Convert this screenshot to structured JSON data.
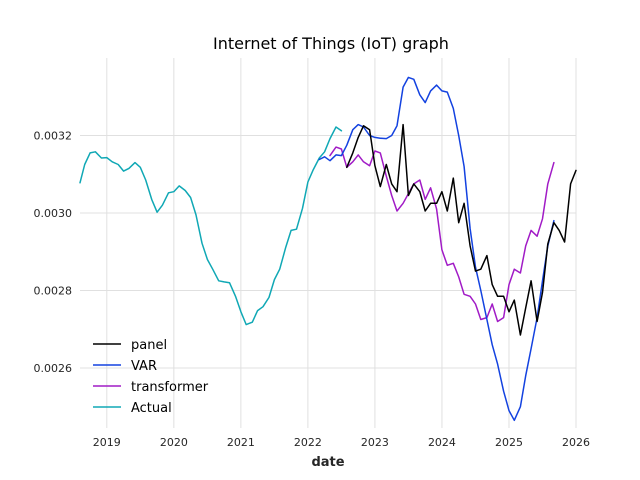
{
  "chart_data": {
    "type": "line",
    "title": "Internet of Things (IoT) graph",
    "xlabel": "date",
    "ylabel": "",
    "xlim": [
      2018.6,
      2026.0
    ],
    "ylim": [
      0.002445,
      0.0034
    ],
    "x_ticks": [
      2019,
      2020,
      2021,
      2022,
      2023,
      2024,
      2025,
      2026
    ],
    "x_tick_labels": [
      "2019",
      "2020",
      "2021",
      "2022",
      "2023",
      "2024",
      "2025",
      "2026"
    ],
    "y_ticks": [
      0.0026,
      0.0028,
      0.003,
      0.0032
    ],
    "y_tick_labels": [
      "0.0026",
      "0.0028",
      "0.0030",
      "0.0032"
    ],
    "grid": true,
    "legend_position": "lower-left",
    "series": [
      {
        "name": "panel",
        "color": "#000000",
        "x": [
          2022.58,
          2022.67,
          2022.75,
          2022.83,
          2022.92,
          2023.0,
          2023.08,
          2023.17,
          2023.25,
          2023.33,
          2023.42,
          2023.5,
          2023.58,
          2023.67,
          2023.75,
          2023.83,
          2023.92,
          2024.0,
          2024.08,
          2024.17,
          2024.25,
          2024.33,
          2024.42,
          2024.5,
          2024.58,
          2024.67,
          2024.75,
          2024.83,
          2024.92,
          2025.0,
          2025.08,
          2025.17,
          2025.25,
          2025.33,
          2025.42,
          2025.5,
          2025.58,
          2025.67,
          2025.75,
          2025.83,
          2025.92,
          2026.0
        ],
        "y": [
          0.003118,
          0.003155,
          0.003195,
          0.003225,
          0.003215,
          0.003122,
          0.003068,
          0.003125,
          0.003075,
          0.003055,
          0.003228,
          0.003045,
          0.003075,
          0.003055,
          0.003005,
          0.003025,
          0.003025,
          0.003055,
          0.003005,
          0.00309,
          0.002975,
          0.003025,
          0.002915,
          0.00285,
          0.002855,
          0.00289,
          0.002815,
          0.002785,
          0.002785,
          0.002745,
          0.002775,
          0.002685,
          0.002755,
          0.002825,
          0.00272,
          0.002795,
          0.00292,
          0.002975,
          0.002955,
          0.002925,
          0.003075,
          0.00311
        ]
      },
      {
        "name": "VAR",
        "color": "#1342e0",
        "x": [
          2022.17,
          2022.25,
          2022.33,
          2022.42,
          2022.5,
          2022.58,
          2022.67,
          2022.75,
          2022.83,
          2022.92,
          2023.0,
          2023.08,
          2023.17,
          2023.25,
          2023.33,
          2023.42,
          2023.5,
          2023.58,
          2023.67,
          2023.75,
          2023.83,
          2023.92,
          2024.0,
          2024.08,
          2024.17,
          2024.25,
          2024.33,
          2024.42,
          2024.5,
          2024.58,
          2024.67,
          2024.75,
          2024.83,
          2024.92,
          2025.0,
          2025.08,
          2025.17,
          2025.25,
          2025.33,
          2025.42,
          2025.5,
          2025.58,
          2025.67
        ],
        "y": [
          0.003138,
          0.003145,
          0.003135,
          0.00315,
          0.003148,
          0.003175,
          0.003215,
          0.003228,
          0.003222,
          0.0032,
          0.003195,
          0.003193,
          0.003192,
          0.0032,
          0.003225,
          0.003325,
          0.00335,
          0.003345,
          0.003305,
          0.003285,
          0.003315,
          0.00333,
          0.003315,
          0.003312,
          0.00327,
          0.0032,
          0.00312,
          0.00296,
          0.00286,
          0.0028,
          0.002725,
          0.00266,
          0.00261,
          0.00254,
          0.00249,
          0.002465,
          0.0025,
          0.00258,
          0.00265,
          0.00273,
          0.002825,
          0.002915,
          0.00298
        ]
      },
      {
        "name": "transformer",
        "color": "#a11bc6",
        "x": [
          2022.33,
          2022.42,
          2022.5,
          2022.58,
          2022.67,
          2022.75,
          2022.83,
          2022.92,
          2023.0,
          2023.08,
          2023.17,
          2023.25,
          2023.33,
          2023.42,
          2023.5,
          2023.58,
          2023.67,
          2023.75,
          2023.83,
          2023.92,
          2024.0,
          2024.08,
          2024.17,
          2024.25,
          2024.33,
          2024.42,
          2024.5,
          2024.58,
          2024.67,
          2024.75,
          2024.83,
          2024.92,
          2025.0,
          2025.08,
          2025.17,
          2025.25,
          2025.33,
          2025.42,
          2025.5,
          2025.58,
          2025.67
        ],
        "y": [
          0.003148,
          0.00317,
          0.003165,
          0.003118,
          0.003132,
          0.00315,
          0.003132,
          0.003122,
          0.00316,
          0.003155,
          0.003095,
          0.003045,
          0.003005,
          0.003025,
          0.00305,
          0.003075,
          0.003085,
          0.003035,
          0.003065,
          0.00301,
          0.002905,
          0.002865,
          0.00287,
          0.002835,
          0.00279,
          0.002785,
          0.002765,
          0.002725,
          0.00273,
          0.002765,
          0.00272,
          0.00273,
          0.002815,
          0.002855,
          0.002845,
          0.002915,
          0.002955,
          0.00294,
          0.002985,
          0.003075,
          0.00313
        ]
      },
      {
        "name": "Actual",
        "color": "#10a8b5",
        "x": [
          2018.6,
          2018.67,
          2018.75,
          2018.83,
          2018.92,
          2019.0,
          2019.08,
          2019.17,
          2019.25,
          2019.33,
          2019.42,
          2019.5,
          2019.58,
          2019.67,
          2019.75,
          2019.83,
          2019.92,
          2020.0,
          2020.08,
          2020.17,
          2020.25,
          2020.33,
          2020.42,
          2020.5,
          2020.58,
          2020.67,
          2020.75,
          2020.83,
          2020.92,
          2021.0,
          2021.08,
          2021.17,
          2021.25,
          2021.33,
          2021.42,
          2021.5,
          2021.58,
          2021.67,
          2021.75,
          2021.83,
          2021.92,
          2022.0,
          2022.08,
          2022.17,
          2022.25,
          2022.33,
          2022.42,
          2022.5
        ],
        "y": [
          0.003078,
          0.003125,
          0.003155,
          0.003158,
          0.003142,
          0.003143,
          0.003132,
          0.003125,
          0.003108,
          0.003115,
          0.00313,
          0.003118,
          0.003085,
          0.003035,
          0.003002,
          0.00302,
          0.003052,
          0.003055,
          0.00307,
          0.003058,
          0.00304,
          0.002995,
          0.002922,
          0.00288,
          0.002855,
          0.002825,
          0.002822,
          0.00282,
          0.002785,
          0.002745,
          0.002712,
          0.002718,
          0.002748,
          0.002758,
          0.002782,
          0.002828,
          0.002855,
          0.002912,
          0.002955,
          0.002958,
          0.003012,
          0.00308,
          0.003112,
          0.003142,
          0.003158,
          0.003192,
          0.003222,
          0.003212
        ]
      }
    ]
  }
}
